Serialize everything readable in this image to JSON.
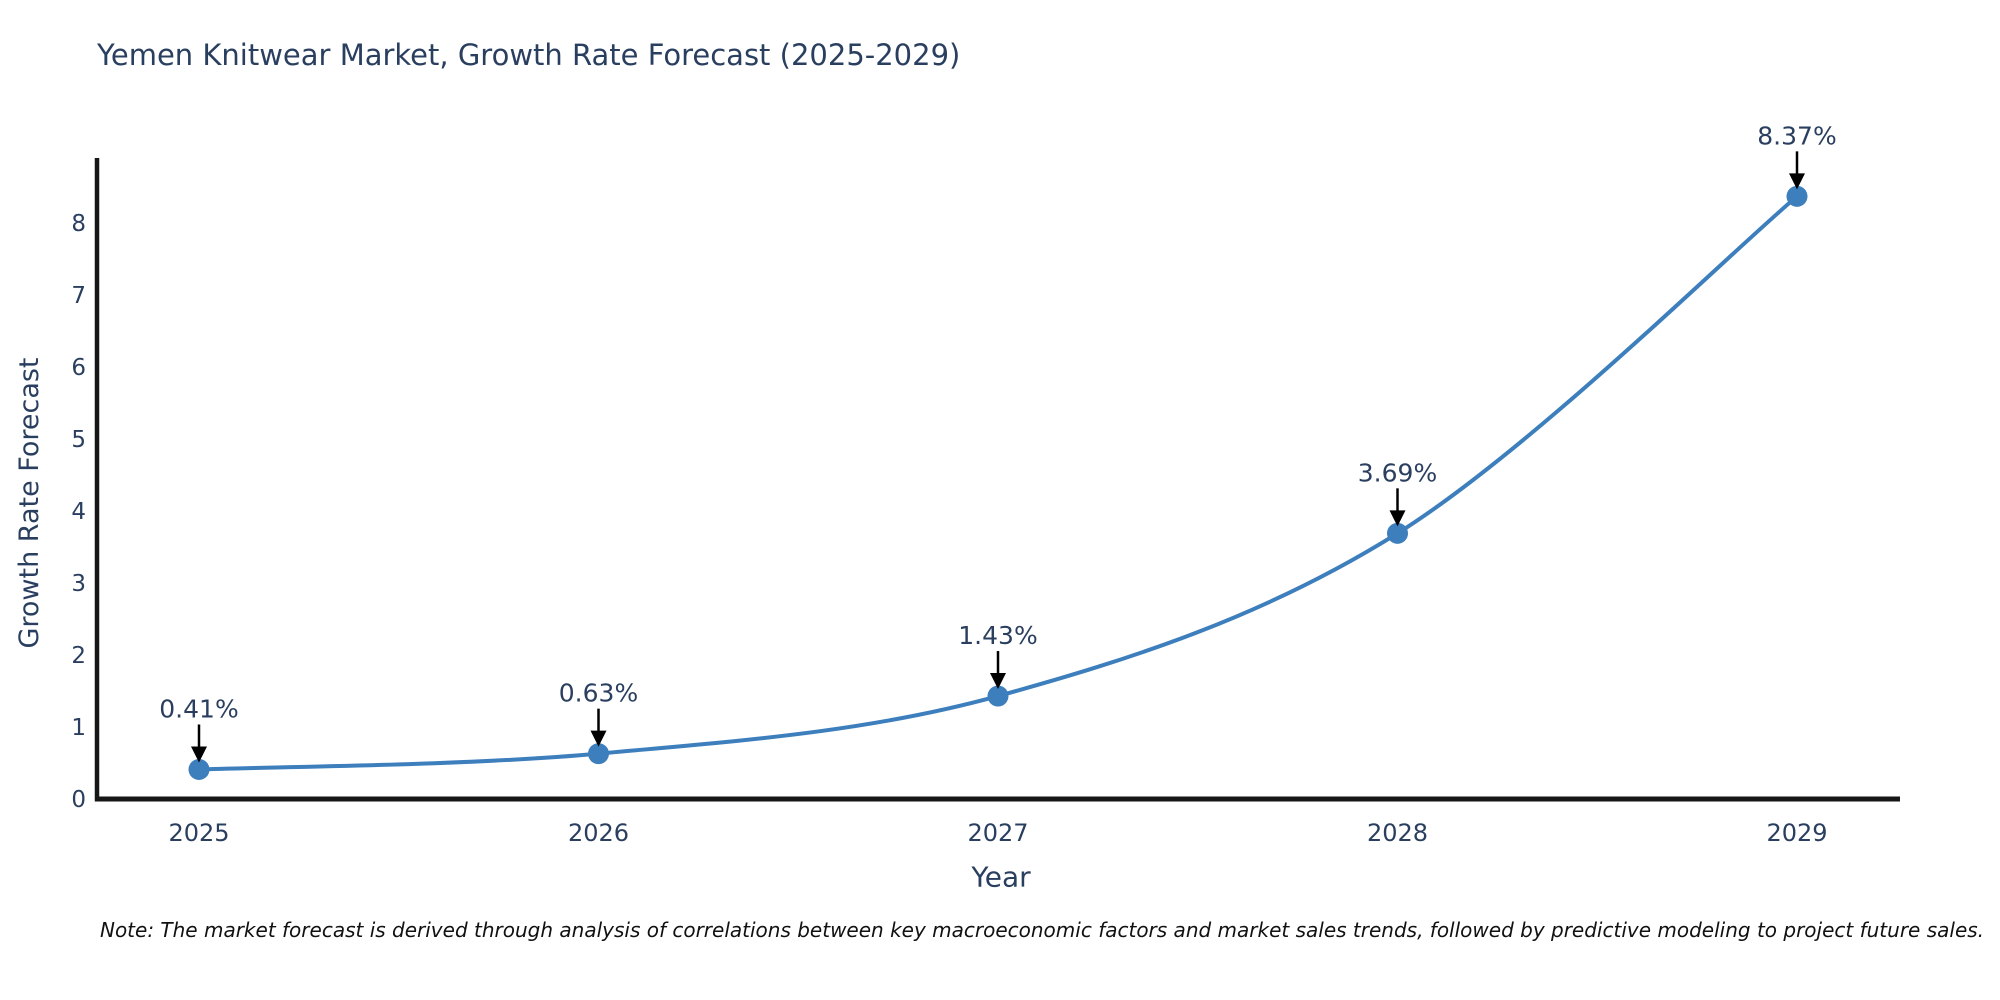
{
  "chart_data": {
    "type": "line",
    "title": "Yemen Knitwear Market, Growth Rate Forecast (2025-2029)",
    "xlabel": "Year",
    "ylabel": "Growth Rate Forecast",
    "categories": [
      "2025",
      "2026",
      "2027",
      "2028",
      "2029"
    ],
    "series": [
      {
        "name": "Growth Rate Forecast",
        "values": [
          0.41,
          0.63,
          1.43,
          3.69,
          8.37
        ],
        "point_labels": [
          "0.41%",
          "0.63%",
          "1.43%",
          "3.69%",
          "8.37%"
        ]
      }
    ],
    "yticks": [
      0,
      1,
      2,
      3,
      4,
      5,
      6,
      7,
      8
    ],
    "ylim": [
      0,
      8.9
    ],
    "grid": false,
    "legend_position": "none",
    "line_shape": "spline",
    "marker_style": "circle",
    "annotation_style": "text-with-down-arrow",
    "colors": {
      "line": "#3d7ebd",
      "marker": "#3d7ebd",
      "axis": "#161616",
      "labels": "#2a3f5f",
      "annotation_text": "#2a3f5f",
      "annotation_arrow": "#000000",
      "background": "#ffffff",
      "note_text": "#111111"
    },
    "note": "Note: The market forecast is derived through analysis of correlations between key macroeconomic factors and market sales trends, followed by predictive modeling to project future sales."
  }
}
